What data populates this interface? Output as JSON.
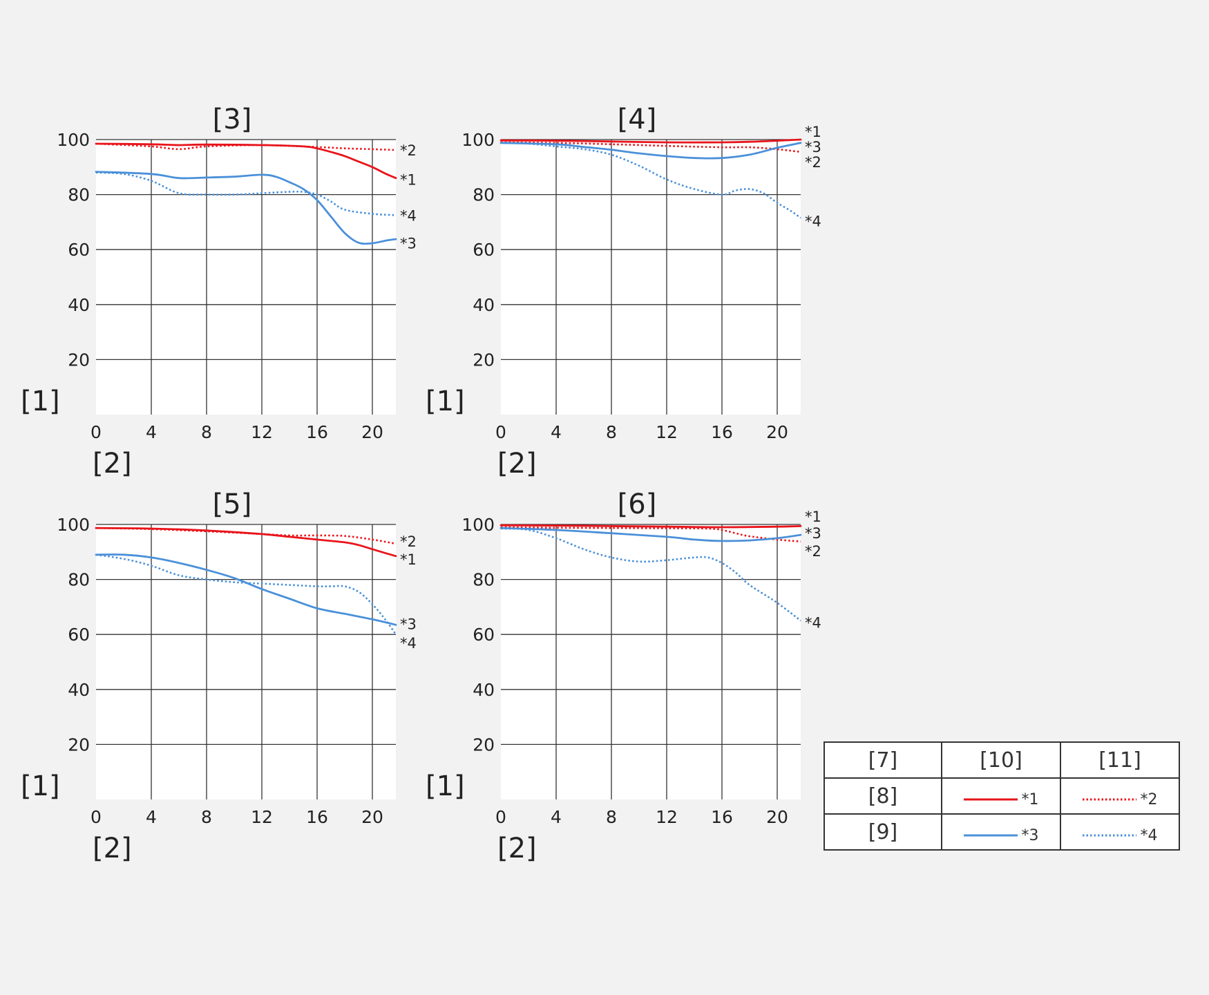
{
  "colors": {
    "red": "#e8141b",
    "blue": "#4a90d9",
    "grid": "#333333",
    "background": "#f2f2f2",
    "plot_bg": "#ffffff"
  },
  "chart_data": [
    {
      "type": "line",
      "title": "[3]",
      "ylabel": "[1]",
      "xlabel": "[2]",
      "xlim": [
        0,
        21.7
      ],
      "ylim": [
        0,
        100
      ],
      "xticks": [
        "0",
        "4",
        "8",
        "12",
        "16",
        "20"
      ],
      "yticks": [
        "100",
        "80",
        "60",
        "40",
        "20"
      ],
      "series": [
        {
          "name": "*1",
          "style": "solid",
          "color": "red",
          "x": [
            0,
            4,
            6,
            8,
            12,
            15,
            16,
            17,
            18,
            19,
            20,
            21,
            21.7
          ],
          "y": [
            98.5,
            98.3,
            98,
            98.2,
            98,
            97.5,
            96.8,
            95.5,
            94,
            92,
            90,
            87.5,
            86
          ]
        },
        {
          "name": "*2",
          "style": "dotted",
          "color": "red",
          "x": [
            0,
            4,
            6,
            8,
            12,
            16,
            18,
            20,
            21.7
          ],
          "y": [
            98.5,
            97.5,
            96.5,
            97.5,
            98,
            97.3,
            96.8,
            96.5,
            96.2
          ]
        },
        {
          "name": "*3",
          "style": "solid",
          "color": "blue",
          "x": [
            0,
            4,
            6,
            8,
            10,
            12,
            13,
            14,
            15,
            16,
            17,
            18,
            19,
            20,
            21,
            21.7
          ],
          "y": [
            88.3,
            87.5,
            86,
            86.2,
            86.5,
            87.2,
            86.5,
            84.5,
            82,
            78,
            72,
            66,
            62.5,
            62.3,
            63.3,
            63.8
          ]
        },
        {
          "name": "*4",
          "style": "dotted",
          "color": "blue",
          "x": [
            0,
            2,
            4,
            6,
            8,
            10,
            12,
            14,
            15,
            16,
            17,
            18,
            20,
            21.7
          ],
          "y": [
            88,
            87.5,
            85,
            80.5,
            80,
            80,
            80.5,
            81,
            81,
            80,
            77.5,
            74.5,
            73,
            72.5
          ]
        }
      ],
      "end_labels": [
        {
          "text": "*2",
          "y": 96.2
        },
        {
          "text": "*1",
          "y": 85.5
        },
        {
          "text": "*4",
          "y": 72.5
        },
        {
          "text": "*3",
          "y": 62.5
        }
      ]
    },
    {
      "type": "line",
      "title": "[4]",
      "ylabel": "[1]",
      "xlabel": "[2]",
      "xlim": [
        0,
        21.7
      ],
      "ylim": [
        0,
        100
      ],
      "xticks": [
        "0",
        "4",
        "8",
        "12",
        "16",
        "20"
      ],
      "yticks": [
        "100",
        "80",
        "60",
        "40",
        "20"
      ],
      "series": [
        {
          "name": "*1",
          "style": "solid",
          "color": "red",
          "x": [
            0,
            4,
            8,
            12,
            16,
            18,
            20,
            21.7
          ],
          "y": [
            99.7,
            99.6,
            99.3,
            99,
            99,
            99.2,
            99.6,
            100
          ]
        },
        {
          "name": "*2",
          "style": "dotted",
          "color": "red",
          "x": [
            0,
            4,
            8,
            12,
            16,
            18,
            20,
            21.7
          ],
          "y": [
            99,
            98.8,
            98.3,
            97.7,
            97.2,
            97.2,
            96.5,
            95.5
          ]
        },
        {
          "name": "*3",
          "style": "solid",
          "color": "blue",
          "x": [
            0,
            4,
            6,
            8,
            10,
            12,
            14,
            16,
            18,
            20,
            21.7
          ],
          "y": [
            98.8,
            98.3,
            97.3,
            96.3,
            95,
            94,
            93.3,
            93.3,
            94.5,
            97,
            98.8
          ]
        },
        {
          "name": "*4",
          "style": "dotted",
          "color": "blue",
          "x": [
            0,
            2,
            4,
            6,
            8,
            10,
            12,
            14,
            16,
            17,
            18,
            19,
            20,
            21,
            21.7
          ],
          "y": [
            98.8,
            98.5,
            97.5,
            96.5,
            94.5,
            90.5,
            85.5,
            82,
            80,
            81.5,
            82,
            80.5,
            77,
            74,
            71.5
          ]
        }
      ],
      "end_labels": [
        {
          "text": "*1",
          "y": 103
        },
        {
          "text": "*3",
          "y": 97.5
        },
        {
          "text": "*2",
          "y": 92
        },
        {
          "text": "*4",
          "y": 70.5
        }
      ]
    },
    {
      "type": "line",
      "title": "[5]",
      "ylabel": "[1]",
      "xlabel": "[2]",
      "xlim": [
        0,
        21.7
      ],
      "ylim": [
        0,
        100
      ],
      "xticks": [
        "0",
        "4",
        "8",
        "12",
        "16",
        "20"
      ],
      "yticks": [
        "100",
        "80",
        "60",
        "40",
        "20"
      ],
      "series": [
        {
          "name": "*1",
          "style": "solid",
          "color": "red",
          "x": [
            0,
            4,
            8,
            12,
            14,
            16,
            18,
            19,
            20,
            21,
            21.7
          ],
          "y": [
            98.7,
            98.5,
            97.8,
            96.5,
            95.5,
            94.5,
            93.5,
            92.5,
            91,
            89.5,
            88.5
          ]
        },
        {
          "name": "*2",
          "style": "dotted",
          "color": "red",
          "x": [
            0,
            4,
            8,
            12,
            14,
            16,
            18,
            20,
            21.7
          ],
          "y": [
            98.7,
            98.3,
            97.5,
            96.5,
            96,
            96,
            95.8,
            94.5,
            93
          ]
        },
        {
          "name": "*3",
          "style": "solid",
          "color": "blue",
          "x": [
            0,
            2,
            4,
            6,
            8,
            10,
            12,
            14,
            16,
            18,
            20,
            21.7
          ],
          "y": [
            89,
            89,
            88,
            86,
            83.5,
            80.5,
            76.5,
            73,
            69.5,
            67.5,
            65.5,
            63.5
          ]
        },
        {
          "name": "*4",
          "style": "dotted",
          "color": "blue",
          "x": [
            0,
            2,
            4,
            6,
            8,
            10,
            12,
            14,
            16,
            17,
            18,
            19,
            20,
            21,
            21.7
          ],
          "y": [
            89,
            87.5,
            85,
            81.5,
            80,
            79,
            78.5,
            78,
            77.5,
            77.5,
            77.5,
            75.5,
            71,
            65,
            60
          ]
        }
      ],
      "end_labels": [
        {
          "text": "*2",
          "y": 94
        },
        {
          "text": "*1",
          "y": 87.5
        },
        {
          "text": "*3",
          "y": 64
        },
        {
          "text": "*4",
          "y": 57
        }
      ]
    },
    {
      "type": "line",
      "title": "[6]",
      "ylabel": "[1]",
      "xlabel": "[2]",
      "xlim": [
        0,
        21.7
      ],
      "ylim": [
        0,
        100
      ],
      "xticks": [
        "0",
        "4",
        "8",
        "12",
        "16",
        "20"
      ],
      "yticks": [
        "100",
        "80",
        "60",
        "40",
        "20"
      ],
      "series": [
        {
          "name": "*1",
          "style": "solid",
          "color": "red",
          "x": [
            0,
            4,
            8,
            12,
            16,
            20,
            21.7
          ],
          "y": [
            99.7,
            99.6,
            99.4,
            99.2,
            99,
            99.2,
            99.4
          ]
        },
        {
          "name": "*2",
          "style": "dotted",
          "color": "red",
          "x": [
            0,
            4,
            8,
            12,
            15,
            16,
            17,
            18,
            20,
            21.7
          ],
          "y": [
            99,
            98.8,
            98.7,
            98.6,
            98.5,
            98,
            96.8,
            95.7,
            94.5,
            93.8
          ]
        },
        {
          "name": "*3",
          "style": "solid",
          "color": "blue",
          "x": [
            0,
            4,
            8,
            12,
            14,
            16,
            18,
            20,
            21.7
          ],
          "y": [
            98.7,
            98,
            96.8,
            95.5,
            94.5,
            94,
            94.2,
            95,
            96.2
          ]
        },
        {
          "name": "*4",
          "style": "dotted",
          "color": "blue",
          "x": [
            0,
            2,
            4,
            6,
            8,
            10,
            12,
            14,
            15,
            16,
            17,
            18,
            20,
            21.7
          ],
          "y": [
            98.5,
            98,
            95,
            91,
            88,
            86.5,
            87,
            88,
            88,
            86,
            82.5,
            78,
            71.5,
            65
          ]
        }
      ],
      "end_labels": [
        {
          "text": "*1",
          "y": 103
        },
        {
          "text": "*3",
          "y": 97
        },
        {
          "text": "*2",
          "y": 90.5
        },
        {
          "text": "*4",
          "y": 64.5
        }
      ]
    }
  ],
  "legend_table": {
    "header": [
      "[7]",
      "[10]",
      "[11]"
    ],
    "row1_label": "[8]",
    "row1_col2": "*1",
    "row1_col3": "*2",
    "row2_label": "[9]",
    "row2_col2": "*3",
    "row2_col3": "*4"
  }
}
